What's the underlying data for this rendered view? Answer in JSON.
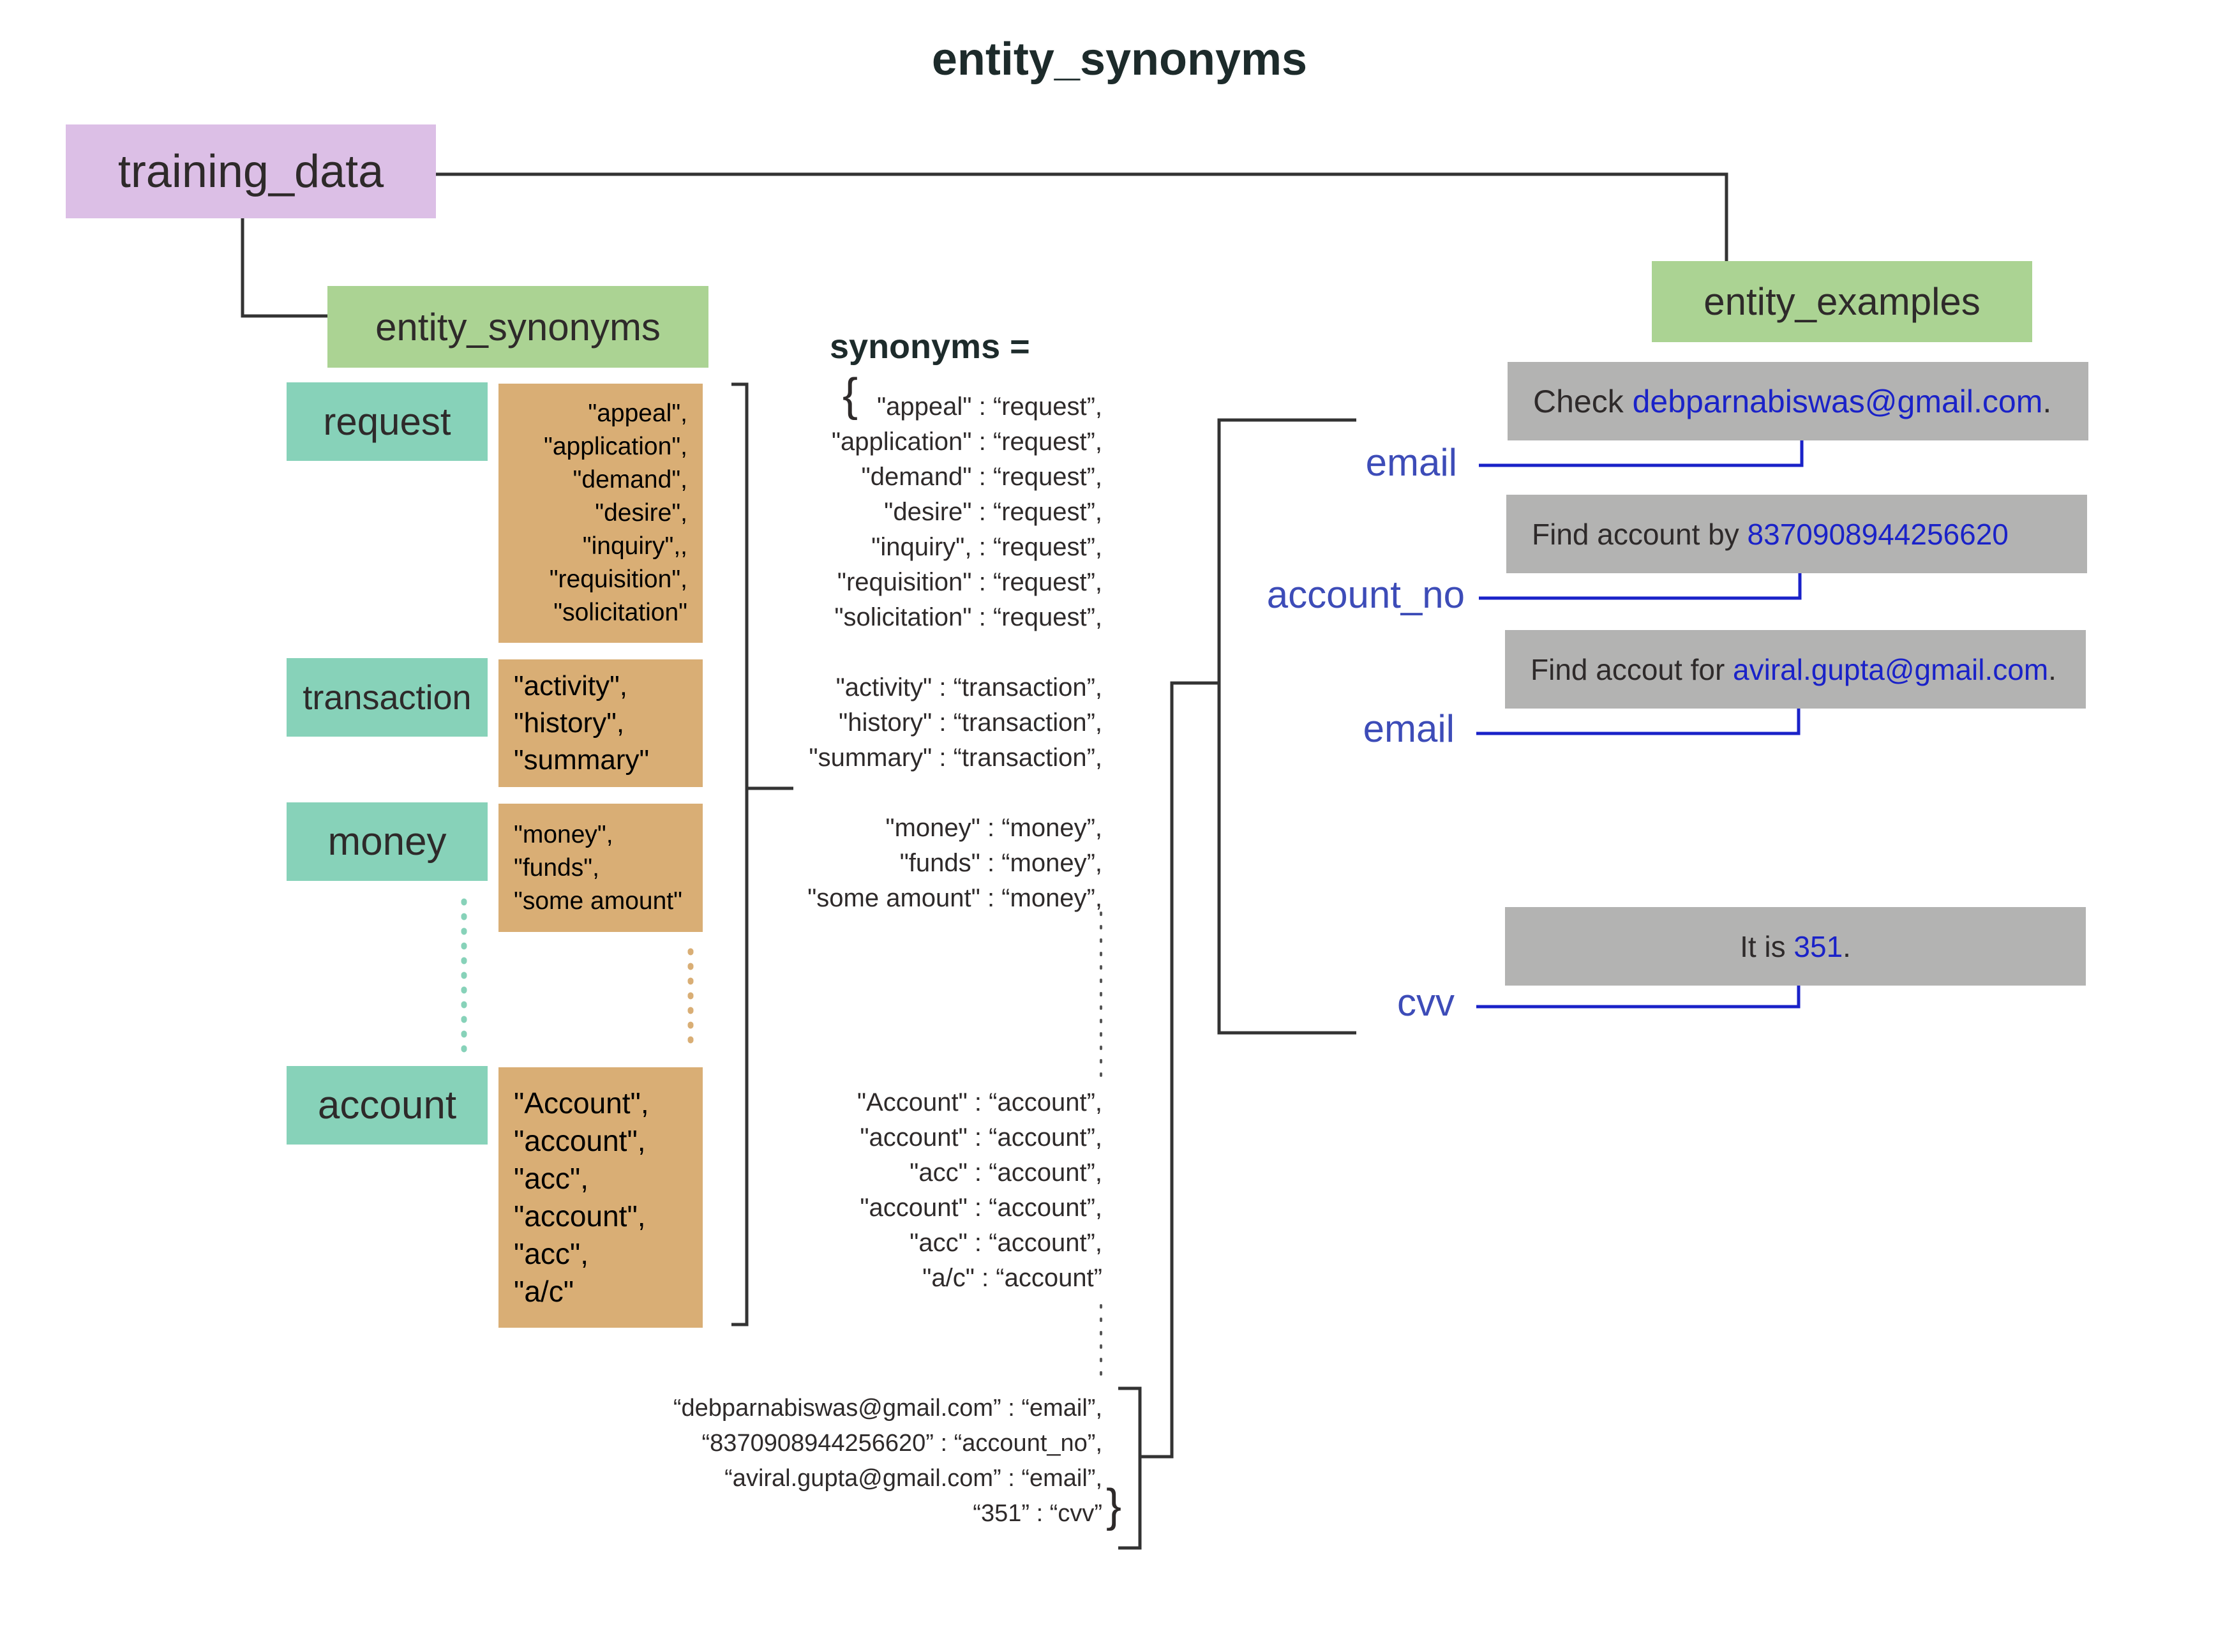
{
  "title": "entity_synonyms",
  "training_data": {
    "label": "training_data"
  },
  "entity_synonyms": {
    "label": "entity_synonyms",
    "groups": [
      {
        "entity": "request",
        "synonyms": [
          "\"appeal\",",
          "\"application\",",
          "\"demand\",",
          "\"desire\",",
          "\"inquiry\",,",
          "\"requisition\",",
          "\"solicitation\""
        ]
      },
      {
        "entity": "transaction",
        "synonyms": [
          "\"activity\",",
          "\"history\",",
          "\"summary\""
        ]
      },
      {
        "entity": "money",
        "synonyms": [
          "\"money\",",
          "\"funds\",",
          "\"some amount\""
        ]
      },
      {
        "entity": "account",
        "synonyms": [
          "\"Account\",",
          "\"account\",",
          "\"acc\",",
          "\"account\",",
          "\"acc\",",
          "\"a/c\""
        ]
      }
    ]
  },
  "synonyms_dict": {
    "header": "synonyms =",
    "open_brace": "{",
    "close_brace": "}",
    "request_lines": [
      "\"appeal\" : “request”,",
      "\"application\" : “request”,",
      "\"demand\" : “request”,",
      "\"desire\" : “request”,",
      "\"inquiry\", : “request”,",
      "\"requisition\" : “request”,",
      "\"solicitation\" : “request”,"
    ],
    "transaction_lines": [
      "\"activity\" : “transaction”,",
      "\"history\" : “transaction”,",
      "\"summary\" : “transaction”,"
    ],
    "money_lines": [
      "\"money\" : “money”,",
      "\"funds\" : “money”,",
      "\"some amount\" : “money”,"
    ],
    "account_lines": [
      "\"Account\" : “account”,",
      "\"account\" : “account”,",
      "\"acc\" : “account”,",
      "\"account\" : “account”,",
      "\"acc\" : “account”,",
      "\"a/c\" : “account”"
    ],
    "example_lines": [
      "“debparnabiswas@gmail.com” : “email”,",
      "“8370908944256620” : “account_no”,",
      "“aviral.gupta@gmail.com” : “email”,",
      "“351” : “cvv”"
    ]
  },
  "entity_examples": {
    "label": "entity_examples",
    "examples": [
      {
        "prefix": "Check ",
        "value": "debparnabiswas@gmail.com",
        "suffix": ".",
        "entity": "email"
      },
      {
        "prefix": "Find account by ",
        "value": "8370908944256620",
        "suffix": "",
        "entity": "account_no"
      },
      {
        "prefix": "Find accout for ",
        "value": "aviral.gupta@gmail.com",
        "suffix": ".",
        "entity": "email"
      },
      {
        "prefix": "It is ",
        "value": "351",
        "suffix": ".",
        "entity": "cvv"
      }
    ]
  },
  "colors": {
    "training_data": "#dcbfe6",
    "section_header": "#abd393",
    "entity": "#87d2b9",
    "synonym_box": "#d9ae75",
    "example_box": "#b3b3b2",
    "highlight": "#1a22c8",
    "entity_label": "#3d4cb8",
    "connector": "#333333"
  }
}
